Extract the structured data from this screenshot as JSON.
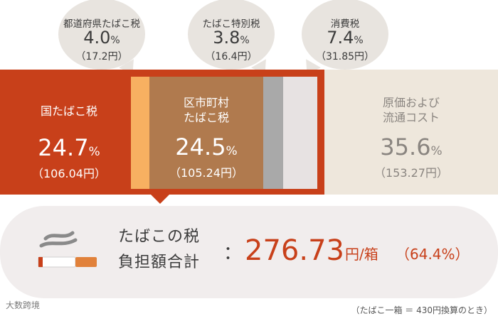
{
  "bubbles": {
    "prefecture": {
      "label": "都道府県たばこ税",
      "pct": "4.0",
      "pct_unit": "%",
      "yen": "（17.2円）"
    },
    "special": {
      "label": "たばこ特別税",
      "pct": "3.8",
      "pct_unit": "%",
      "yen": "（16.4円）"
    },
    "consumption": {
      "label": "消費税",
      "pct": "7.4",
      "pct_unit": "%",
      "yen": "（31.85円）"
    }
  },
  "segments": {
    "national": {
      "label": "国たばこ税",
      "pct": "24.7",
      "pct_unit": "%",
      "yen": "（106.04円）"
    },
    "municipal": {
      "label_line1": "区市町村",
      "label_line2": "たばこ税",
      "pct": "24.5",
      "pct_unit": "%",
      "yen": "（105.24円）"
    },
    "cost": {
      "label_line1": "原価および",
      "label_line2": "流通コスト",
      "pct": "35.6",
      "pct_unit": "%",
      "yen": "（153.27円）"
    }
  },
  "total": {
    "label_line1": "たばこの税",
    "label_line2": "負担額合計",
    "colon": "：",
    "amount": "276.73",
    "unit": "円/箱",
    "ratio": "（64.4%）"
  },
  "footnote": "（たばこ一箱 ＝ 430円換算のとき）",
  "watermark": "大数跨境",
  "colors": {
    "national": "#c8401a",
    "prefecture": "#f7b061",
    "municipal": "#b07a4e",
    "special": "#a9a9a9",
    "consumption": "#e7e2e2",
    "cost": "#eee7dc",
    "bubble": "#e8e4df"
  },
  "icons": {
    "cigarette": "cigarette-icon"
  }
}
